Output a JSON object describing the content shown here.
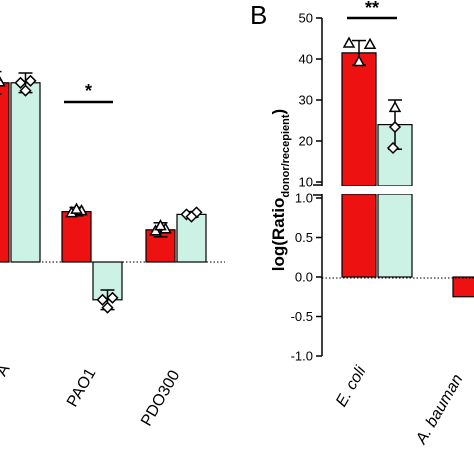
{
  "chart_data": [
    {
      "panel": "A",
      "type": "bar",
      "categories": [
        "",
        "PAO1",
        "PDO300"
      ],
      "category_labels_visible": [
        "A",
        "PAO1",
        "PDO300"
      ],
      "series": [
        {
          "color": "#ee1111",
          "values": [
            1.28,
            0.36,
            0.23
          ]
        },
        {
          "color": "#ccf2e6",
          "values": [
            1.28,
            -0.27,
            0.34
          ]
        }
      ],
      "errors": [
        [
          0.08,
          0.03,
          0.05
        ],
        [
          0.07,
          0.07,
          0.02
        ]
      ],
      "significance": [
        {
          "category": "PAO1",
          "label": "*"
        }
      ]
    },
    {
      "panel": "B",
      "panel_label": "B",
      "type": "bar",
      "broken_axis": true,
      "ylabel_main": "log(Ratio",
      "ylabel_sub": "donor/recepient",
      "ylabel_end": ")",
      "categories": [
        "E. coli",
        "A. bauman"
      ],
      "series": [
        {
          "color": "#ee1111",
          "values": [
            41.5,
            -0.25
          ]
        },
        {
          "color": "#ccf2e6",
          "values": [
            24,
            null
          ]
        }
      ],
      "errors": [
        [
          3.0,
          0.1
        ],
        [
          6.0,
          null
        ]
      ],
      "upper_axis": {
        "ylim": [
          10,
          50
        ],
        "ticks": [
          "50",
          "40",
          "30",
          "20",
          "10"
        ]
      },
      "lower_axis": {
        "ylim": [
          -1.0,
          1.0
        ],
        "ticks": [
          "1.0",
          "0.5",
          "0.0",
          "-0.5",
          "-1.0"
        ]
      },
      "significance": [
        {
          "category": "E. coli",
          "label": "**"
        }
      ]
    }
  ]
}
